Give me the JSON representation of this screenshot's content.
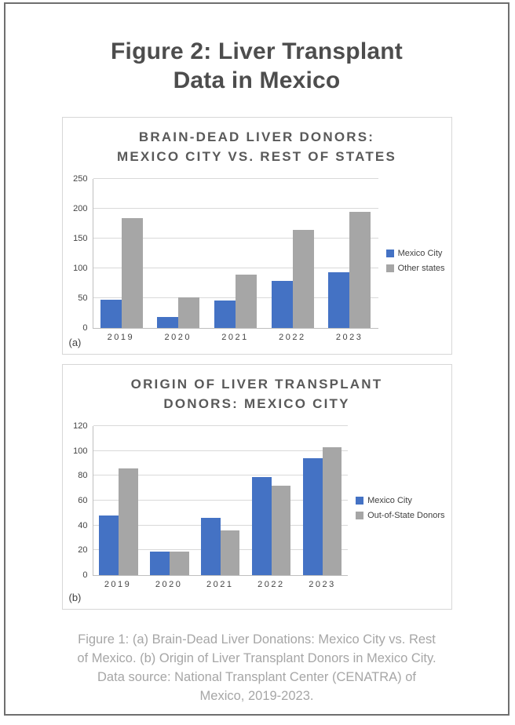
{
  "page": {
    "title_lines": [
      "Figure 2: Liver Transplant",
      "Data in Mexico"
    ]
  },
  "caption": {
    "lines": [
      "Figure 1: (a) Brain-Dead Liver Donations: Mexico City vs. Rest",
      "of Mexico. (b) Origin of Liver Transplant Donors in Mexico City.",
      "Data source: National Transplant Center (CENATRA) of",
      "Mexico, 2019-2023."
    ]
  },
  "colors": {
    "series_blue": "#4472C4",
    "series_gray": "#A6A6A6",
    "gridline": "#D9D9D9",
    "title_dark": "#4D4D4D",
    "chart_title_gray": "#595959",
    "caption_gray": "#A6A6A6"
  },
  "chart_data": [
    {
      "type": "bar",
      "panel_label": "(a)",
      "title_lines": [
        "BRAIN-DEAD LIVER DONORS:",
        "MEXICO CITY VS. REST OF STATES"
      ],
      "categories": [
        "2019",
        "2020",
        "2021",
        "2022",
        "2023"
      ],
      "series": [
        {
          "name": "Mexico City",
          "color": "#4472C4",
          "values": [
            48,
            19,
            46,
            79,
            94
          ]
        },
        {
          "name": "Other states",
          "color": "#A6A6A6",
          "values": [
            184,
            51,
            90,
            165,
            195
          ]
        }
      ],
      "ylim": [
        0,
        250
      ],
      "ytick_step": 50,
      "grid": true,
      "legend_position": "right"
    },
    {
      "type": "bar",
      "panel_label": "(b)",
      "title_lines": [
        "ORIGIN OF LIVER TRANSPLANT",
        "DONORS: MEXICO CITY"
      ],
      "categories": [
        "2019",
        "2020",
        "2021",
        "2022",
        "2023"
      ],
      "series": [
        {
          "name": "Mexico City",
          "color": "#4472C4",
          "values": [
            48,
            19,
            46,
            79,
            94
          ]
        },
        {
          "name": "Out-of-State Donors",
          "color": "#A6A6A6",
          "values": [
            86,
            19,
            36,
            72,
            103
          ]
        }
      ],
      "ylim": [
        0,
        120
      ],
      "ytick_step": 20,
      "grid": true,
      "legend_position": "right"
    }
  ]
}
